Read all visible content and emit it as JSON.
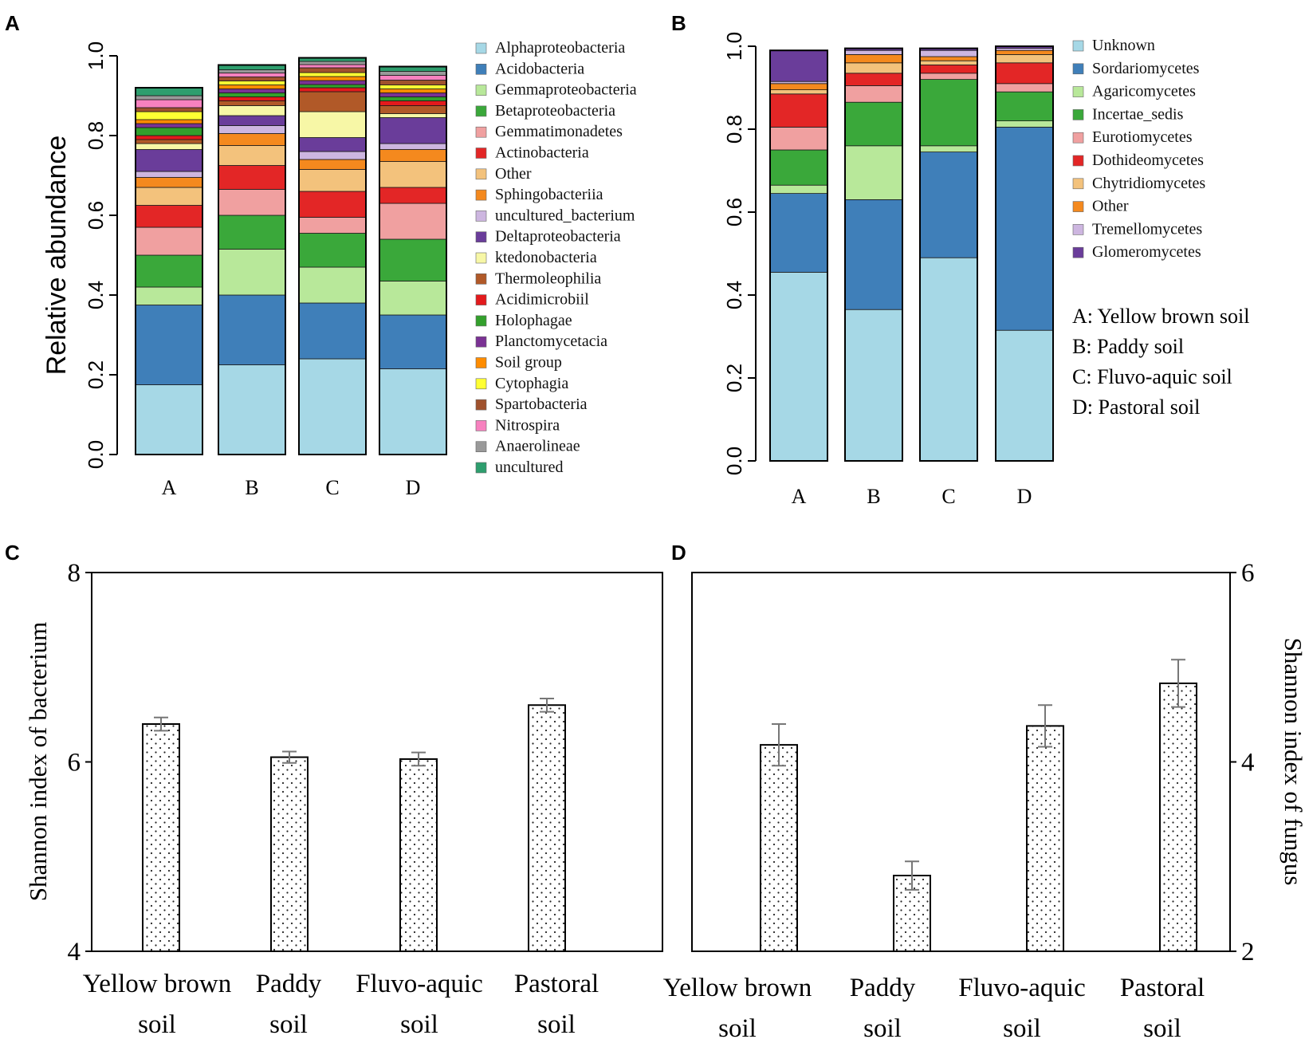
{
  "figure": {
    "panel_labels": [
      "A",
      "B",
      "C",
      "D"
    ],
    "soil_key": [
      "A: Yellow brown soil",
      "B: Paddy soil",
      "C: Fluvo-aquic soil",
      "D: Pastoral soil"
    ]
  },
  "chart_data": [
    {
      "id": "A",
      "type": "stacked-bar",
      "ylabel": "Relative abundance",
      "ylim": [
        0,
        1
      ],
      "yticks": [
        "0.0",
        "0.2",
        "0.4",
        "0.6",
        "0.8",
        "1.0"
      ],
      "categories": [
        "A",
        "B",
        "C",
        "D"
      ],
      "legend_position": "right",
      "series": [
        {
          "name": "Alphaproteobacteria",
          "color": "#a6d8e6",
          "values": [
            0.175,
            0.225,
            0.24,
            0.215
          ]
        },
        {
          "name": "Acidobacteria",
          "color": "#3f7fb9",
          "values": [
            0.2,
            0.175,
            0.14,
            0.135
          ]
        },
        {
          "name": "Gemmaproteobacteria",
          "color": "#b8e89a",
          "values": [
            0.045,
            0.115,
            0.09,
            0.085
          ]
        },
        {
          "name": "Betaproteobacteria",
          "color": "#3aa83a",
          "values": [
            0.08,
            0.085,
            0.085,
            0.105
          ]
        },
        {
          "name": "Gemmatimonadetes",
          "color": "#f0a0a0",
          "values": [
            0.07,
            0.065,
            0.04,
            0.09
          ]
        },
        {
          "name": "Actinobacteria",
          "color": "#e32626",
          "values": [
            0.055,
            0.06,
            0.065,
            0.04
          ]
        },
        {
          "name": "Other",
          "color": "#f3c27c",
          "values": [
            0.045,
            0.05,
            0.055,
            0.065
          ]
        },
        {
          "name": "Sphingobacteriia",
          "color": "#f4891e",
          "values": [
            0.025,
            0.03,
            0.025,
            0.03
          ]
        },
        {
          "name": "uncultured_bacterium",
          "color": "#cdb6e0",
          "values": [
            0.015,
            0.02,
            0.02,
            0.015
          ]
        },
        {
          "name": "Deltaproteobacteria",
          "color": "#6a3d9a",
          "values": [
            0.055,
            0.025,
            0.035,
            0.065
          ]
        },
        {
          "name": "ktedonobacteria",
          "color": "#f7f7a6",
          "values": [
            0.015,
            0.025,
            0.065,
            0.01
          ]
        },
        {
          "name": "Thermoleophilia",
          "color": "#b15928",
          "values": [
            0.01,
            0.012,
            0.05,
            0.02
          ]
        },
        {
          "name": "Acidimicrobiil",
          "color": "#e31a1c",
          "values": [
            0.01,
            0.01,
            0.01,
            0.012
          ]
        },
        {
          "name": "Holophagae",
          "color": "#33a02c",
          "values": [
            0.02,
            0.01,
            0.008,
            0.01
          ]
        },
        {
          "name": "Planctomycetacia",
          "color": "#7b3294",
          "values": [
            0.01,
            0.01,
            0.01,
            0.01
          ]
        },
        {
          "name": "Soil group",
          "color": "#ff8c00",
          "values": [
            0.01,
            0.01,
            0.01,
            0.01
          ]
        },
        {
          "name": "Cytophagia",
          "color": "#ffff33",
          "values": [
            0.02,
            0.01,
            0.01,
            0.01
          ]
        },
        {
          "name": "Spartobacteria",
          "color": "#a0522d",
          "values": [
            0.01,
            0.01,
            0.012,
            0.012
          ]
        },
        {
          "name": "Nitrospira",
          "color": "#f781bf",
          "values": [
            0.02,
            0.01,
            0.008,
            0.012
          ]
        },
        {
          "name": "Anaerolineae",
          "color": "#999999",
          "values": [
            0.01,
            0.008,
            0.008,
            0.01
          ]
        },
        {
          "name": "uncultured",
          "color": "#2e9e6e",
          "values": [
            0.02,
            0.012,
            0.009,
            0.012
          ]
        }
      ]
    },
    {
      "id": "B",
      "type": "stacked-bar",
      "ylabel": "",
      "ylim": [
        0,
        1
      ],
      "yticks": [
        "0.0",
        "0.2",
        "0.4",
        "0.6",
        "0.8",
        "1.0"
      ],
      "categories": [
        "A",
        "B",
        "C",
        "D"
      ],
      "legend_position": "right",
      "series": [
        {
          "name": "Unknown",
          "color": "#a6d8e6",
          "values": [
            0.455,
            0.365,
            0.49,
            0.315
          ]
        },
        {
          "name": "Sordariomycetes",
          "color": "#3f7fb9",
          "values": [
            0.19,
            0.265,
            0.255,
            0.49
          ]
        },
        {
          "name": "Agaricomycetes",
          "color": "#b8e89a",
          "values": [
            0.02,
            0.13,
            0.015,
            0.015
          ]
        },
        {
          "name": "Incertae_sedis",
          "color": "#3aa83a",
          "values": [
            0.085,
            0.105,
            0.16,
            0.07
          ]
        },
        {
          "name": "Eurotiomycetes",
          "color": "#f0a0a0",
          "values": [
            0.055,
            0.04,
            0.015,
            0.02
          ]
        },
        {
          "name": "Dothideomycetes",
          "color": "#e32626",
          "values": [
            0.08,
            0.03,
            0.02,
            0.05
          ]
        },
        {
          "name": "Chytridiomycetes",
          "color": "#f3c27c",
          "values": [
            0.01,
            0.025,
            0.01,
            0.02
          ]
        },
        {
          "name": "Other",
          "color": "#f4891e",
          "values": [
            0.015,
            0.02,
            0.01,
            0.01
          ]
        },
        {
          "name": "Tremellomycetes",
          "color": "#cdb6e0",
          "values": [
            0.005,
            0.01,
            0.015,
            0.005
          ]
        },
        {
          "name": "Glomeromycetes",
          "color": "#6a3d9a",
          "values": [
            0.075,
            0.005,
            0.005,
            0.005
          ]
        }
      ]
    },
    {
      "id": "C",
      "type": "bar",
      "ylabel": "Shannon index of bacterium",
      "ylim": [
        4,
        8
      ],
      "yticks": [
        "4",
        "6",
        "8"
      ],
      "categories": [
        "Yellow brown soil",
        "Paddy soil",
        "Fluvo-aquic soil",
        "Pastoral soil"
      ],
      "category_lines": [
        [
          "Yellow brown",
          "soil"
        ],
        [
          "Paddy",
          "soil"
        ],
        [
          "Fluvo-aquic",
          "soil"
        ],
        [
          "Pastoral",
          "soil"
        ]
      ],
      "values": [
        6.4,
        6.05,
        6.03,
        6.6
      ],
      "errors": [
        0.07,
        0.06,
        0.07,
        0.07
      ]
    },
    {
      "id": "D",
      "type": "bar",
      "ylabel": "Shannon index of fungus",
      "ylim": [
        2,
        6
      ],
      "yticks": [
        "2",
        "4",
        "6"
      ],
      "categories": [
        "Yellow brown soil",
        "Paddy soil",
        "Fluvo-aquic soil",
        "Pastoral soil"
      ],
      "category_lines": [
        [
          "Yellow brown",
          "soil"
        ],
        [
          "Paddy",
          "soil"
        ],
        [
          "Fluvo-aquic",
          "soil"
        ],
        [
          "Pastoral",
          "soil"
        ]
      ],
      "values": [
        4.18,
        2.8,
        4.38,
        4.83
      ],
      "errors": [
        0.22,
        0.15,
        0.22,
        0.25
      ]
    }
  ]
}
